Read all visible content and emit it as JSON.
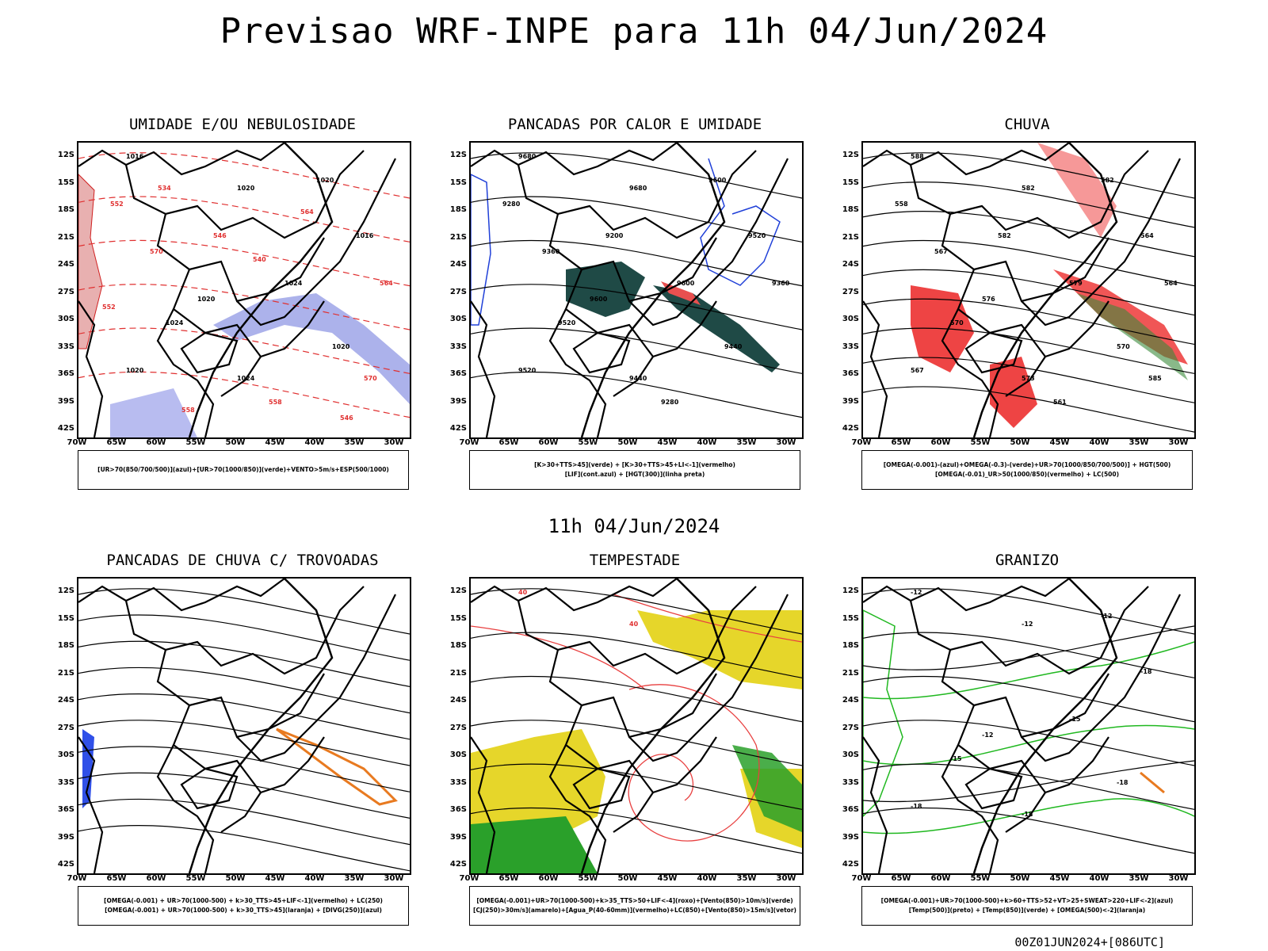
{
  "title": "Previsao WRF-INPE  para 11h 04/Jun/2024",
  "mid_title": "11h 04/Jun/2024",
  "footer": "00Z01JUN2024+[086UTC]",
  "lat_labels": [
    "12S",
    "15S",
    "18S",
    "21S",
    "24S",
    "27S",
    "30S",
    "33S",
    "36S",
    "39S",
    "42S"
  ],
  "lon_labels": [
    "70W",
    "65W",
    "60W",
    "55W",
    "50W",
    "45W",
    "40W",
    "35W",
    "30W"
  ],
  "panels": [
    {
      "title": "UMIDADE E/OU NEBULOSIDADE",
      "legend": [
        "[UR>70(850/700/500)](azul)+[UR>70(1000/850)](verde)+VENTO>5m/s+ESP(500/1000)"
      ],
      "labels": [
        "1016",
        "1020",
        "1020",
        "1020",
        "1024",
        "1024",
        "1020",
        "1016",
        "1024",
        "1020",
        "570",
        "564",
        "558",
        "552",
        "546",
        "570",
        "564",
        "558",
        "552",
        "546",
        "540",
        "534"
      ]
    },
    {
      "title": "PANCADAS POR CALOR E UMIDADE",
      "legend": [
        "[K>30+TTS>45](verde) + [K>30+TTS>45+LI<-1](vermelho)",
        "[LIF](cont.azul) + [HGT(300)](linha preta)"
      ],
      "labels": [
        "9680",
        "9680",
        "9600",
        "9600",
        "9600",
        "9520",
        "9520",
        "9520",
        "9440",
        "9440",
        "9360",
        "9360",
        "9280",
        "9280",
        "9200"
      ]
    },
    {
      "title": "CHUVA",
      "legend": [
        "[OMEGA(-0.001)-(azul)+OMEGA(-0.3)-(verde)+UR>70(1000/850/700/500)] + HGT(500)",
        "[OMEGA(-0.01)_UR>50(1000/850)(vermelho) + LC(500)"
      ],
      "labels": [
        "588",
        "582",
        "582",
        "576",
        "579",
        "570",
        "567",
        "564",
        "573",
        "570",
        "567",
        "564",
        "561",
        "558",
        "582",
        "585"
      ]
    },
    {
      "title": "PANCADAS DE CHUVA C/ TROVOADAS",
      "legend": [
        "[OMEGA(-0.001) + UR>70(1000-500) + k>30_TTS>45+LIF<-1](vermelho) + LC(250)",
        "[OMEGA(-0.001) + UR>70(1000-500) + k>30_TTS>45](laranja) + [DIVG(250)](azul)"
      ],
      "labels": []
    },
    {
      "title": "TEMPESTADE",
      "legend": [
        "[OMEGA(-0.001)+UR>70(1000-500)+k>35_TTS>50+LIF<-4](roxo)+[Vento(850)>10m/s](verde)",
        "[CJ(250)>30m/s](amarelo)+[Agua_P(40-60mm)](vermelho)+LC(850)+[Vento(850)>15m/s](vetor)"
      ],
      "labels": [
        "40",
        "40"
      ]
    },
    {
      "title": "GRANIZO",
      "legend": [
        "[OMEGA(-0.001)+UR>70(1000-500)+k>60+TTS>52+VT>25+SWEAT>220+LIF<-2](azul)",
        "[Temp(500)](preto) + [Temp(850)](verde) + [OMEGA(500)<-2](laranja)"
      ],
      "labels": [
        "-12",
        "-12",
        "-12",
        "-12",
        "-15",
        "-15",
        "-18",
        "-18",
        "-18",
        "-18"
      ]
    }
  ]
}
